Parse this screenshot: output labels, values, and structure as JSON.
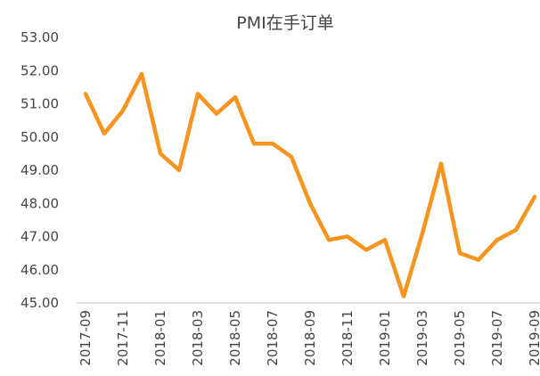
{
  "chart_data": {
    "type": "line",
    "title": "PMI在手订单",
    "categories": [
      "2017-09",
      null,
      "2017-11",
      null,
      "2018-01",
      null,
      "2018-03",
      null,
      "2018-05",
      null,
      "2018-07",
      null,
      "2018-09",
      null,
      "2018-11",
      null,
      "2019-01",
      null,
      "2019-03",
      null,
      "2019-05",
      null,
      "2019-07",
      null,
      "2019-09"
    ],
    "values": [
      51.3,
      50.1,
      50.8,
      51.9,
      49.5,
      49.0,
      51.3,
      50.7,
      51.2,
      49.8,
      49.8,
      49.4,
      48.0,
      46.9,
      47.0,
      46.6,
      46.9,
      45.2,
      47.1,
      49.2,
      46.5,
      46.3,
      46.9,
      47.2,
      48.2
    ],
    "color": "#f7941d",
    "ylim": [
      45,
      53
    ],
    "yticks": [
      {
        "value": 45,
        "label": "45.00"
      },
      {
        "value": 46,
        "label": "46.00"
      },
      {
        "value": 47,
        "label": "47.00"
      },
      {
        "value": 48,
        "label": "48.00"
      },
      {
        "value": 49,
        "label": "49.00"
      },
      {
        "value": 50,
        "label": "50.00"
      },
      {
        "value": 51,
        "label": "51.00"
      },
      {
        "value": 52,
        "label": "52.00"
      },
      {
        "value": 53,
        "label": "53.00"
      }
    ],
    "grid": false
  }
}
